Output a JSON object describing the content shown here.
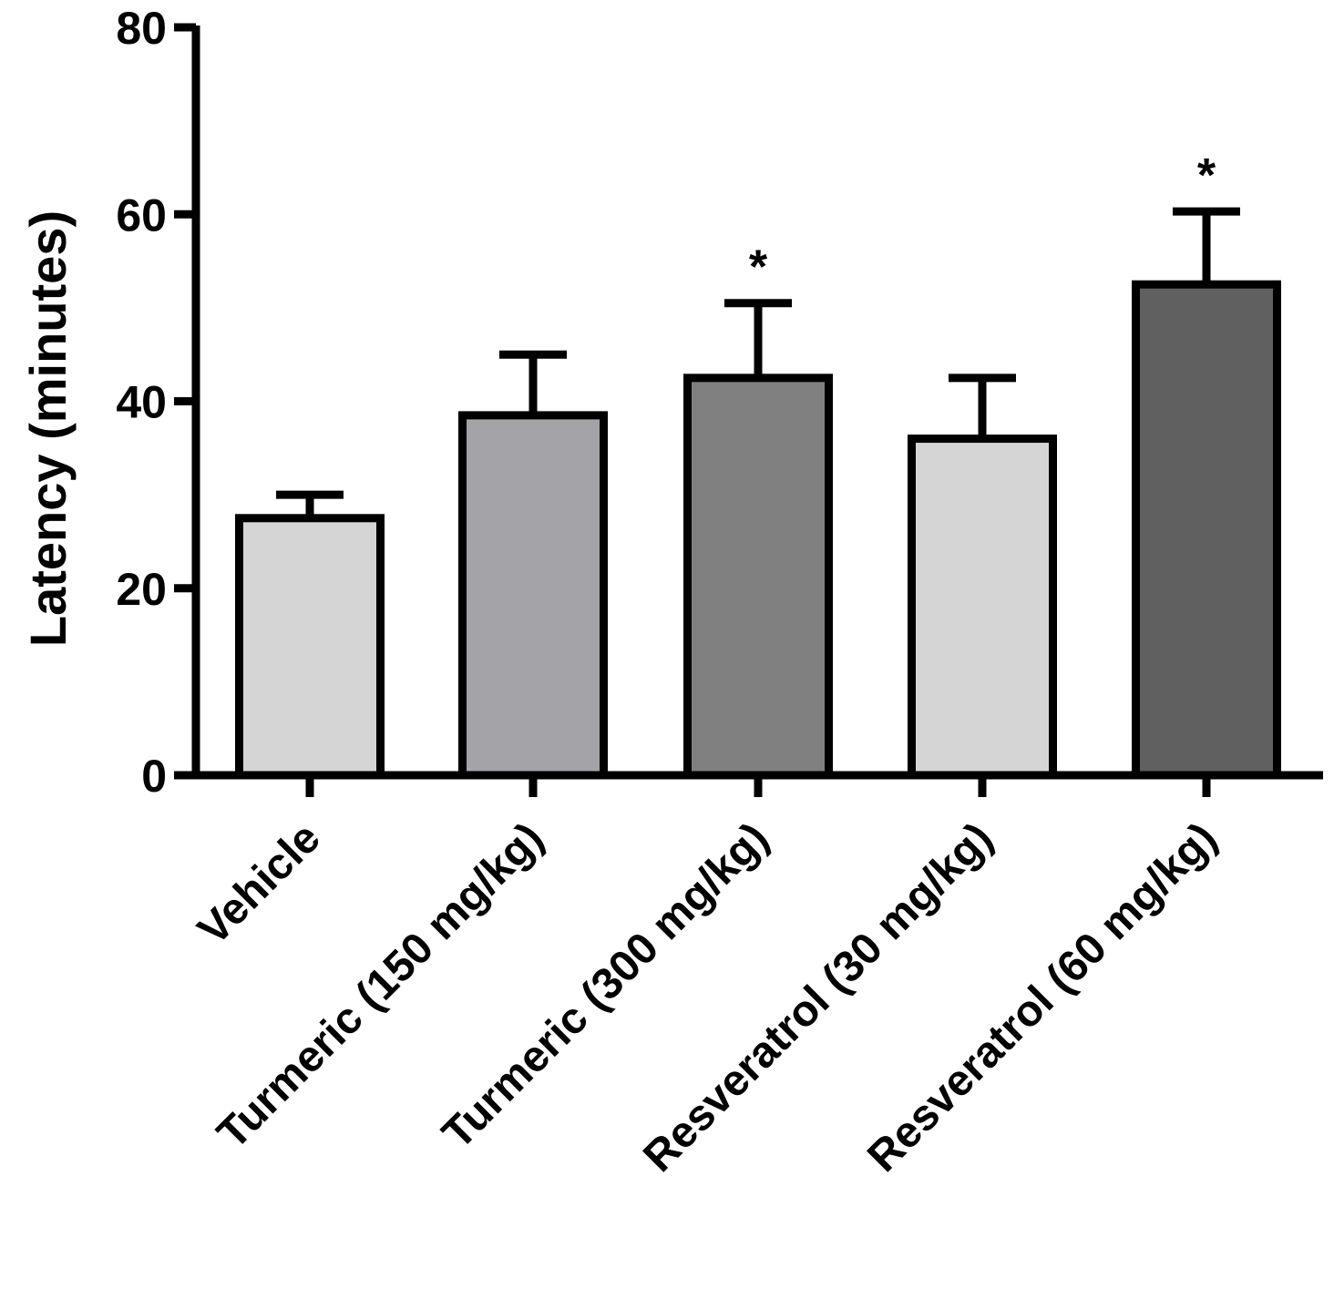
{
  "chart_data": {
    "type": "bar",
    "title": "",
    "xlabel": "",
    "ylabel": "Latency (minutes)",
    "ylim": [
      0,
      80
    ],
    "yticks": [
      0,
      20,
      40,
      60,
      80
    ],
    "grid": false,
    "categories": [
      "Vehicle",
      "Turmeric (150 mg/kg)",
      "Turmeric (300 mg/kg)",
      "Resveratrol (30 mg/kg)",
      "Resveratrol (60 mg/kg)"
    ],
    "values": [
      27.5,
      38.5,
      42.5,
      36,
      52.5
    ],
    "error_upper": [
      2.5,
      6.5,
      8,
      6.5,
      7.8
    ],
    "significance": [
      "",
      "",
      "*",
      "",
      "*"
    ],
    "colors": [
      "#d5d5d5",
      "#a4a4a8",
      "#808080",
      "#d5d5d5",
      "#606060"
    ]
  }
}
